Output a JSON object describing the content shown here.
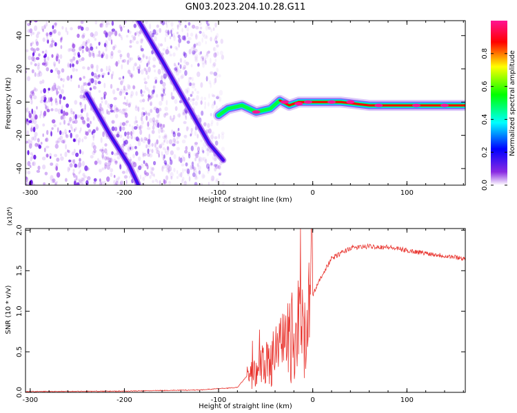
{
  "title": "GN03.2023.204.10.28.G11",
  "chart_data": [
    {
      "type": "heatmap",
      "xlabel": "Height of straight line (km)",
      "ylabel": "Frequency (Hz)",
      "xlim": [
        -305,
        162
      ],
      "ylim": [
        -50,
        49
      ],
      "x_ticks": [
        -300,
        -200,
        -100,
        0,
        100
      ],
      "y_ticks": [
        -40,
        -20,
        0,
        20,
        40
      ],
      "colorbar": {
        "label": "Normalized spectral amplitude",
        "range": [
          0,
          1
        ],
        "ticks": [
          "0.0",
          "0.2",
          "0.4",
          "0.6",
          "0.8"
        ],
        "colors": [
          "#ffffff",
          "#8a2be2",
          "#0000ff",
          "#00ffff",
          "#00ff00",
          "#ffff00",
          "#ff0000",
          "#ff1493"
        ]
      },
      "features": [
        {
          "name": "noise-region",
          "x_range": [
            -305,
            -95
          ],
          "level": 0.15
        },
        {
          "name": "streak-upper",
          "points": [
            [
              -185,
              49
            ],
            [
              -160,
              25
            ],
            [
              -140,
              5
            ],
            [
              -125,
              -10
            ],
            [
              -110,
              -25
            ],
            [
              -95,
              -35
            ]
          ],
          "level": 0.3
        },
        {
          "name": "streak-lower",
          "points": [
            [
              -240,
              5
            ],
            [
              -215,
              -20
            ],
            [
              -195,
              -38
            ],
            [
              -185,
              -50
            ]
          ],
          "level": 0.3
        },
        {
          "name": "main-line",
          "points": [
            [
              -100,
              -8
            ],
            [
              -90,
              -4
            ],
            [
              -75,
              -2
            ],
            [
              -60,
              -6
            ],
            [
              -45,
              -4
            ],
            [
              -35,
              1
            ],
            [
              -25,
              -2
            ],
            [
              -15,
              0
            ],
            [
              0,
              0
            ],
            [
              30,
              0
            ],
            [
              60,
              -2
            ],
            [
              100,
              -2
            ],
            [
              162,
              -2
            ]
          ],
          "level": 0.9
        }
      ]
    },
    {
      "type": "line",
      "xlabel": "Height of straight line (km)",
      "ylabel": "SNR (10 * v/v)",
      "y_multiplier": "(x10⁴)",
      "xlim": [
        -305,
        162
      ],
      "ylim": [
        0,
        2.02
      ],
      "x_ticks": [
        -300,
        -200,
        -100,
        0,
        100
      ],
      "y_ticks": [
        "0.0",
        "0.5",
        "1.0",
        "1.5",
        "2.0"
      ],
      "color": "#e8302a",
      "envelope": {
        "x": [
          -305,
          -200,
          -120,
          -80,
          -70,
          -60,
          -50,
          -40,
          -30,
          -20,
          -10,
          0,
          10,
          20,
          40,
          60,
          80,
          100,
          130,
          162
        ],
        "y": [
          0.01,
          0.015,
          0.03,
          0.06,
          0.2,
          0.3,
          0.4,
          0.5,
          0.65,
          0.8,
          1.0,
          1.2,
          1.45,
          1.65,
          1.78,
          1.8,
          1.79,
          1.75,
          1.7,
          1.65
        ]
      },
      "spikes": {
        "x_range": [
          -70,
          0
        ],
        "max": 2.02
      }
    }
  ]
}
